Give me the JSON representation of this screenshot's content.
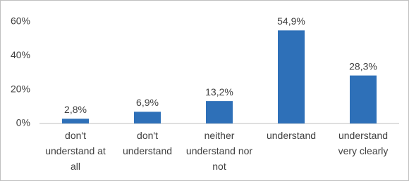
{
  "chart_data": {
    "type": "bar",
    "categories": [
      "don't understand at all",
      "don't understand",
      "neither understand nor not",
      "understand",
      "understand very clearly"
    ],
    "values": [
      2.8,
      6.9,
      13.2,
      54.9,
      28.3
    ],
    "value_labels": [
      "2,8%",
      "6,9%",
      "13,2%",
      "54,9%",
      "28,3%"
    ],
    "color": "#2e70b8",
    "ylim": [
      0,
      60
    ],
    "yticks": [
      {
        "value": 0,
        "label": "0%"
      },
      {
        "value": 20,
        "label": "20%"
      },
      {
        "value": 40,
        "label": "40%"
      },
      {
        "value": 60,
        "label": "60%"
      }
    ],
    "grid": false
  }
}
